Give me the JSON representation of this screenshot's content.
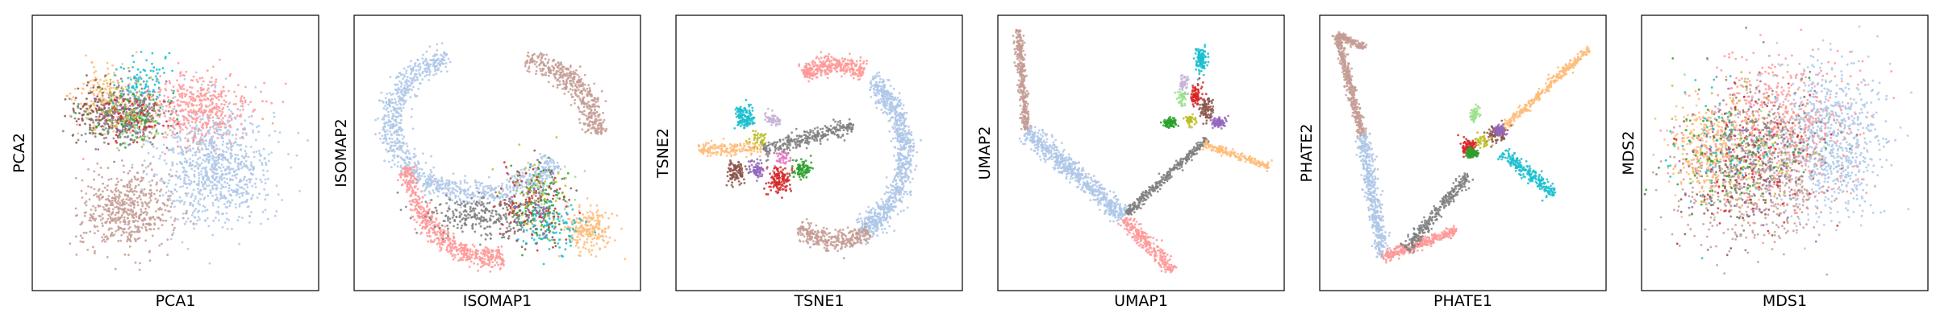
{
  "palette": {
    "light_blue": "#aec7e8",
    "salmon": "#ff9896",
    "rosy_brown": "#c49c94",
    "grey": "#7f7f7f",
    "orange": "#ffbb78",
    "green": "#2ca02c",
    "red": "#d62728",
    "purple": "#9467bd",
    "cyan": "#17becf",
    "brown": "#8c564b",
    "olive": "#bcbd22",
    "light_green": "#98df8a",
    "lavender": "#c5b0d5",
    "pink": "#f7b6d2",
    "magenta": "#e377c2",
    "light_grey": "#c7c7c7"
  },
  "chart_data": [
    {
      "type": "scatter",
      "method": "PCA",
      "xlabel": "PCA1",
      "ylabel": "PCA2",
      "title": "",
      "xticks": [],
      "yticks": [],
      "xlim": [
        0,
        100
      ],
      "ylim": [
        0,
        100
      ],
      "groups": [
        {
          "color": "light_blue",
          "n": 900,
          "shape": "blob",
          "cx": 64,
          "cy": 46,
          "rx": 20,
          "ry": 22
        },
        {
          "color": "rosy_brown",
          "n": 550,
          "shape": "blob",
          "cx": 33,
          "cy": 29,
          "rx": 16,
          "ry": 14
        },
        {
          "color": "salmon",
          "n": 450,
          "shape": "blob",
          "cx": 57,
          "cy": 66,
          "rx": 20,
          "ry": 13
        },
        {
          "color": "grey",
          "n": 320,
          "shape": "blob",
          "cx": 32,
          "cy": 63,
          "rx": 14,
          "ry": 10
        },
        {
          "color": "orange",
          "n": 160,
          "shape": "blob",
          "cx": 26,
          "cy": 70,
          "rx": 11,
          "ry": 12
        },
        {
          "color": "brown",
          "n": 110,
          "shape": "blob",
          "cx": 22,
          "cy": 66,
          "rx": 10,
          "ry": 10
        },
        {
          "color": "green",
          "n": 90,
          "shape": "blob",
          "cx": 35,
          "cy": 64,
          "rx": 12,
          "ry": 10
        },
        {
          "color": "cyan",
          "n": 90,
          "shape": "blob",
          "cx": 38,
          "cy": 76,
          "rx": 9,
          "ry": 10
        },
        {
          "color": "red",
          "n": 80,
          "shape": "blob",
          "cx": 35,
          "cy": 63,
          "rx": 12,
          "ry": 10
        },
        {
          "color": "purple",
          "n": 60,
          "shape": "blob",
          "cx": 33,
          "cy": 66,
          "rx": 12,
          "ry": 10
        },
        {
          "color": "olive",
          "n": 45,
          "shape": "blob",
          "cx": 34,
          "cy": 68,
          "rx": 12,
          "ry": 10
        },
        {
          "color": "light_green",
          "n": 45,
          "shape": "blob",
          "cx": 36,
          "cy": 60,
          "rx": 12,
          "ry": 10
        }
      ]
    },
    {
      "type": "scatter",
      "method": "ISOMAP",
      "xlabel": "ISOMAP1",
      "ylabel": "ISOMAP2",
      "title": "",
      "xticks": [],
      "yticks": [],
      "xlim": [
        0,
        100
      ],
      "ylim": [
        0,
        100
      ],
      "groups": [
        {
          "color": "light_blue",
          "n": 1000,
          "shape": "arc",
          "cx": 43,
          "cy": 61,
          "rx": 30,
          "ry": 26,
          "a0": 110,
          "a1": 330,
          "w": 5
        },
        {
          "color": "rosy_brown",
          "n": 450,
          "shape": "arc",
          "cx": 55,
          "cy": 59,
          "rx": 29,
          "ry": 25,
          "a0": -5,
          "a1": 80,
          "w": 4.5
        },
        {
          "color": "salmon",
          "n": 550,
          "shape": "arc",
          "cx": 47,
          "cy": 52,
          "rx": 29,
          "ry": 40,
          "a0": 190,
          "a1": 280,
          "w": 4
        },
        {
          "color": "grey",
          "n": 280,
          "shape": "blob",
          "cx": 45,
          "cy": 27,
          "rx": 20,
          "ry": 7
        },
        {
          "color": "orange",
          "n": 220,
          "shape": "blob",
          "cx": 82,
          "cy": 22,
          "rx": 8,
          "ry": 8
        },
        {
          "color": "brown",
          "n": 110,
          "shape": "blob",
          "cx": 62,
          "cy": 30,
          "rx": 12,
          "ry": 14
        },
        {
          "color": "green",
          "n": 110,
          "shape": "blob",
          "cx": 65,
          "cy": 32,
          "rx": 10,
          "ry": 15
        },
        {
          "color": "cyan",
          "n": 100,
          "shape": "blob",
          "cx": 68,
          "cy": 23,
          "rx": 11,
          "ry": 9
        },
        {
          "color": "red",
          "n": 70,
          "shape": "blob",
          "cx": 62,
          "cy": 33,
          "rx": 12,
          "ry": 14
        },
        {
          "color": "purple",
          "n": 60,
          "shape": "blob",
          "cx": 64,
          "cy": 33,
          "rx": 12,
          "ry": 14
        },
        {
          "color": "olive",
          "n": 40,
          "shape": "blob",
          "cx": 63,
          "cy": 34,
          "rx": 12,
          "ry": 14
        },
        {
          "color": "light_green",
          "n": 30,
          "shape": "blob",
          "cx": 66,
          "cy": 36,
          "rx": 12,
          "ry": 14
        }
      ]
    },
    {
      "type": "scatter",
      "method": "TSNE",
      "xlabel": "TSNE1",
      "ylabel": "TSNE2",
      "title": "",
      "xticks": [],
      "yticks": [],
      "xlim": [
        0,
        100
      ],
      "ylim": [
        0,
        100
      ],
      "groups": [
        {
          "color": "light_blue",
          "n": 900,
          "shape": "arc",
          "cx": 56,
          "cy": 50,
          "rx": 24,
          "ry": 30,
          "a0": -70,
          "a1": 60,
          "w": 4.5
        },
        {
          "color": "salmon",
          "n": 320,
          "shape": "arc",
          "cx": 56,
          "cy": 55,
          "rx": 23,
          "ry": 27,
          "a0": 65,
          "a1": 120,
          "w": 3.5
        },
        {
          "color": "rosy_brown",
          "n": 320,
          "shape": "arc",
          "cx": 56,
          "cy": 45,
          "rx": 23,
          "ry": 27,
          "a0": 235,
          "a1": 300,
          "w": 3.5
        },
        {
          "color": "grey",
          "n": 300,
          "shape": "bar",
          "x0": 30,
          "y0": 51,
          "x1": 62,
          "y1": 60,
          "w": 3
        },
        {
          "color": "orange",
          "n": 170,
          "shape": "bar",
          "x0": 8,
          "y0": 51,
          "x1": 30,
          "y1": 52,
          "w": 2.5
        },
        {
          "color": "cyan",
          "n": 130,
          "shape": "blob",
          "cx": 24,
          "cy": 63,
          "rx": 3,
          "ry": 4
        },
        {
          "color": "brown",
          "n": 110,
          "shape": "blob",
          "cx": 21,
          "cy": 43,
          "rx": 3,
          "ry": 4
        },
        {
          "color": "red",
          "n": 130,
          "shape": "blob",
          "cx": 36,
          "cy": 40,
          "rx": 4,
          "ry": 5
        },
        {
          "color": "green",
          "n": 90,
          "shape": "blob",
          "cx": 44,
          "cy": 44,
          "rx": 3,
          "ry": 3
        },
        {
          "color": "purple",
          "n": 70,
          "shape": "blob",
          "cx": 28,
          "cy": 44,
          "rx": 3,
          "ry": 3
        },
        {
          "color": "lavender",
          "n": 50,
          "shape": "blob",
          "cx": 34,
          "cy": 62,
          "rx": 3,
          "ry": 3
        },
        {
          "color": "olive",
          "n": 40,
          "shape": "blob",
          "cx": 29,
          "cy": 55,
          "rx": 3,
          "ry": 3
        },
        {
          "color": "magenta",
          "n": 40,
          "shape": "blob",
          "cx": 37,
          "cy": 48,
          "rx": 3,
          "ry": 3
        }
      ]
    },
    {
      "type": "scatter",
      "method": "UMAP",
      "xlabel": "UMAP1",
      "ylabel": "UMAP2",
      "title": "",
      "xticks": [],
      "yticks": [],
      "xlim": [
        0,
        100
      ],
      "ylim": [
        0,
        100
      ],
      "groups": [
        {
          "color": "rosy_brown",
          "n": 350,
          "shape": "bar",
          "x0": 7,
          "y0": 95,
          "x1": 10,
          "y1": 58,
          "w": 1.5
        },
        {
          "color": "light_blue",
          "n": 650,
          "shape": "bar",
          "x0": 10,
          "y0": 58,
          "x1": 44,
          "y1": 27,
          "w": 3.5
        },
        {
          "color": "salmon",
          "n": 260,
          "shape": "bar",
          "x0": 44,
          "y0": 26,
          "x1": 61,
          "y1": 7,
          "w": 2.5
        },
        {
          "color": "grey",
          "n": 320,
          "shape": "bar",
          "x0": 45,
          "y0": 28,
          "x1": 73,
          "y1": 55,
          "w": 1.5
        },
        {
          "color": "orange",
          "n": 170,
          "shape": "bar",
          "x0": 72,
          "y0": 53,
          "x1": 95,
          "y1": 45,
          "w": 1.5
        },
        {
          "color": "cyan",
          "n": 110,
          "shape": "blob",
          "cx": 71,
          "cy": 84,
          "rx": 2,
          "ry": 5
        },
        {
          "color": "brown",
          "n": 90,
          "shape": "blob",
          "cx": 73,
          "cy": 66,
          "rx": 2.5,
          "ry": 4
        },
        {
          "color": "red",
          "n": 90,
          "shape": "blob",
          "cx": 69,
          "cy": 71,
          "rx": 2,
          "ry": 4
        },
        {
          "color": "green",
          "n": 80,
          "shape": "blob",
          "cx": 60,
          "cy": 61,
          "rx": 2,
          "ry": 2
        },
        {
          "color": "purple",
          "n": 80,
          "shape": "blob",
          "cx": 77,
          "cy": 61,
          "rx": 3,
          "ry": 2
        },
        {
          "color": "olive",
          "n": 45,
          "shape": "blob",
          "cx": 67,
          "cy": 62,
          "rx": 2,
          "ry": 2
        },
        {
          "color": "light_green",
          "n": 40,
          "shape": "blob",
          "cx": 64,
          "cy": 70,
          "rx": 2,
          "ry": 3
        },
        {
          "color": "lavender",
          "n": 40,
          "shape": "blob",
          "cx": 65,
          "cy": 76,
          "rx": 2,
          "ry": 3
        }
      ]
    },
    {
      "type": "scatter",
      "method": "PHATE",
      "xlabel": "PHATE1",
      "ylabel": "PHATE2",
      "title": "",
      "xticks": [],
      "yticks": [],
      "xlim": [
        0,
        100
      ],
      "ylim": [
        0,
        100
      ],
      "groups": [
        {
          "color": "rosy_brown",
          "n": 420,
          "shape": "bar",
          "x0": 6,
          "y0": 93,
          "x1": 15,
          "y1": 56,
          "w": 1.5
        },
        {
          "color": "rosy_brown",
          "n": 140,
          "shape": "bar",
          "x0": 6,
          "y0": 93,
          "x1": 16,
          "y1": 88,
          "w": 1.2
        },
        {
          "color": "light_blue",
          "n": 500,
          "shape": "bar",
          "x0": 15,
          "y0": 57,
          "x1": 22,
          "y1": 12,
          "w": 2.5
        },
        {
          "color": "salmon",
          "n": 300,
          "shape": "bar",
          "x0": 22,
          "y0": 12,
          "x1": 48,
          "y1": 22,
          "w": 2
        },
        {
          "color": "grey",
          "n": 300,
          "shape": "bar",
          "x0": 30,
          "y0": 15,
          "x1": 52,
          "y1": 42,
          "w": 2
        },
        {
          "color": "orange",
          "n": 320,
          "shape": "bar",
          "x0": 62,
          "y0": 57,
          "x1": 94,
          "y1": 88,
          "w": 1.5
        },
        {
          "color": "cyan",
          "n": 220,
          "shape": "bar",
          "x0": 64,
          "y0": 50,
          "x1": 82,
          "y1": 35,
          "w": 2.5
        },
        {
          "color": "red",
          "n": 100,
          "shape": "blob",
          "cx": 52,
          "cy": 52,
          "rx": 3,
          "ry": 3
        },
        {
          "color": "brown",
          "n": 100,
          "shape": "blob",
          "cx": 62,
          "cy": 57,
          "rx": 3,
          "ry": 3
        },
        {
          "color": "green",
          "n": 90,
          "shape": "blob",
          "cx": 53,
          "cy": 50,
          "rx": 2,
          "ry": 2
        },
        {
          "color": "purple",
          "n": 80,
          "shape": "blob",
          "cx": 63,
          "cy": 58,
          "rx": 2,
          "ry": 2
        },
        {
          "color": "light_green",
          "n": 45,
          "shape": "blob",
          "cx": 54,
          "cy": 64,
          "rx": 2,
          "ry": 3
        },
        {
          "color": "olive",
          "n": 40,
          "shape": "blob",
          "cx": 57,
          "cy": 54,
          "rx": 3,
          "ry": 2
        }
      ]
    },
    {
      "type": "scatter",
      "method": "MDS",
      "xlabel": "MDS1",
      "ylabel": "MDS2",
      "title": "",
      "xticks": [],
      "yticks": [],
      "xlim": [
        0,
        100
      ],
      "ylim": [
        0,
        100
      ],
      "groups": [
        {
          "color": "light_blue",
          "n": 800,
          "shape": "blob",
          "cx": 66,
          "cy": 55,
          "rx": 18,
          "ry": 26
        },
        {
          "color": "salmon",
          "n": 650,
          "shape": "blob",
          "cx": 46,
          "cy": 58,
          "rx": 26,
          "ry": 26
        },
        {
          "color": "rosy_brown",
          "n": 550,
          "shape": "blob",
          "cx": 38,
          "cy": 40,
          "rx": 25,
          "ry": 24
        },
        {
          "color": "orange",
          "n": 280,
          "shape": "blob",
          "cx": 22,
          "cy": 52,
          "rx": 14,
          "ry": 18
        },
        {
          "color": "grey",
          "n": 220,
          "shape": "blob",
          "cx": 40,
          "cy": 52,
          "rx": 24,
          "ry": 24
        },
        {
          "color": "green",
          "n": 90,
          "shape": "blob",
          "cx": 32,
          "cy": 48,
          "rx": 22,
          "ry": 24
        },
        {
          "color": "red",
          "n": 90,
          "shape": "blob",
          "cx": 36,
          "cy": 48,
          "rx": 22,
          "ry": 24
        },
        {
          "color": "purple",
          "n": 80,
          "shape": "blob",
          "cx": 36,
          "cy": 46,
          "rx": 22,
          "ry": 24
        },
        {
          "color": "brown",
          "n": 80,
          "shape": "blob",
          "cx": 34,
          "cy": 44,
          "rx": 22,
          "ry": 24
        },
        {
          "color": "cyan",
          "n": 70,
          "shape": "blob",
          "cx": 30,
          "cy": 50,
          "rx": 22,
          "ry": 24
        },
        {
          "color": "olive",
          "n": 60,
          "shape": "blob",
          "cx": 34,
          "cy": 50,
          "rx": 22,
          "ry": 24
        },
        {
          "color": "light_green",
          "n": 50,
          "shape": "blob",
          "cx": 36,
          "cy": 50,
          "rx": 22,
          "ry": 24
        }
      ]
    }
  ]
}
